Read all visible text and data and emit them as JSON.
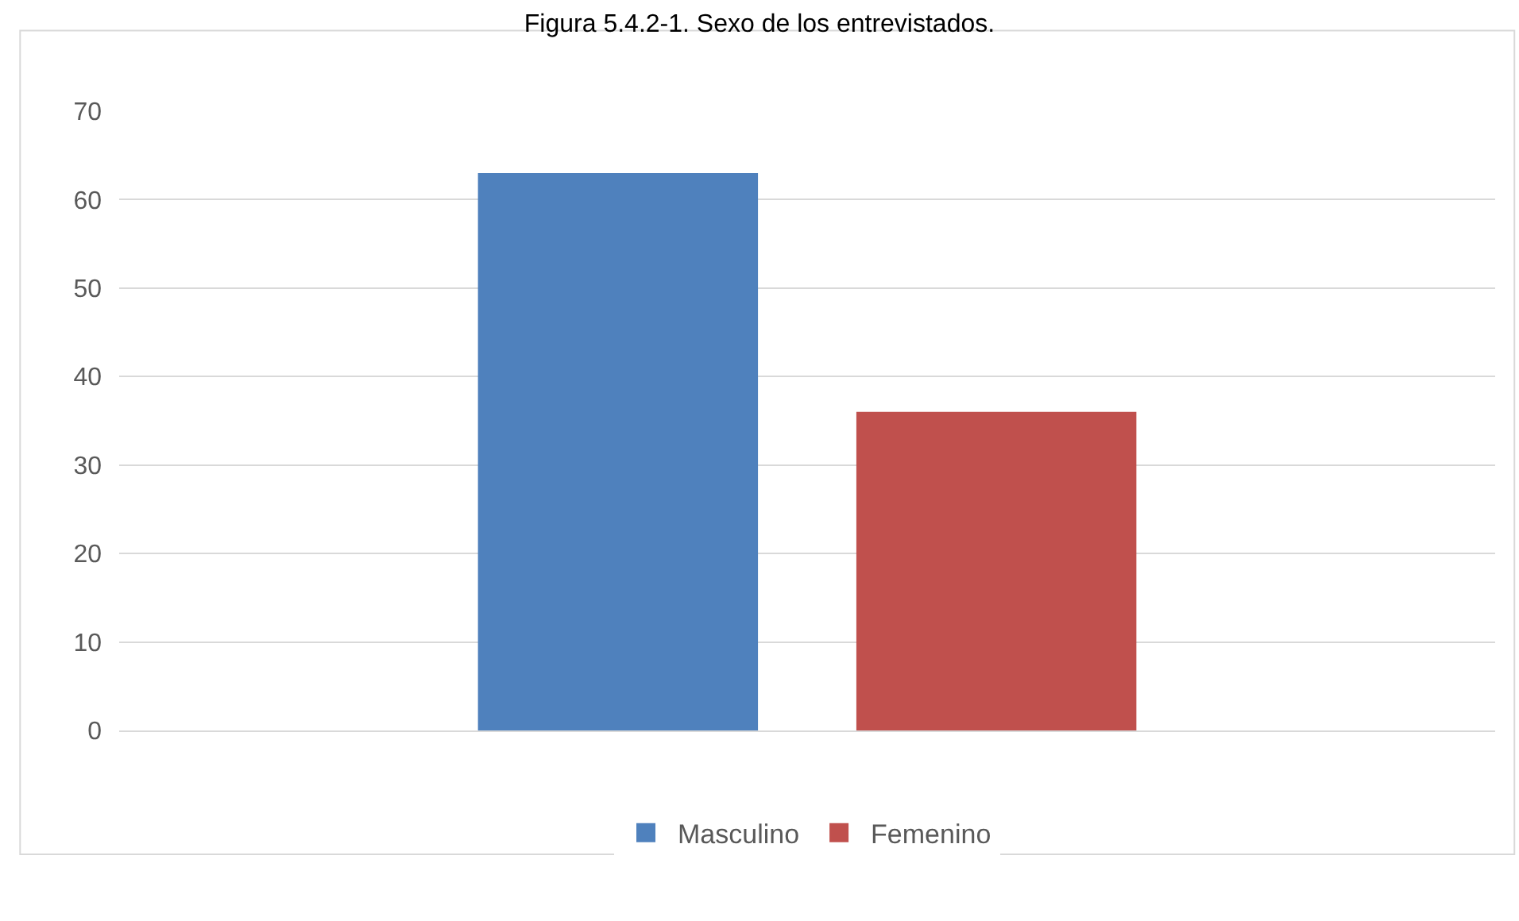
{
  "chart_data": {
    "type": "bar",
    "title": "Figura 5.4.2-1. Sexo de los entrevistados.",
    "categories": [
      null
    ],
    "series": [
      {
        "name": "Masculino",
        "color": "#4f81bd",
        "values": [
          63
        ]
      },
      {
        "name": "Femenino",
        "color": "#c0504d",
        "values": [
          36
        ]
      }
    ],
    "ylim": [
      0,
      70
    ],
    "yticks": [
      0,
      10,
      20,
      30,
      40,
      50,
      60,
      70
    ],
    "grid": "y",
    "legend": "bottom",
    "tick_labels": "y"
  }
}
